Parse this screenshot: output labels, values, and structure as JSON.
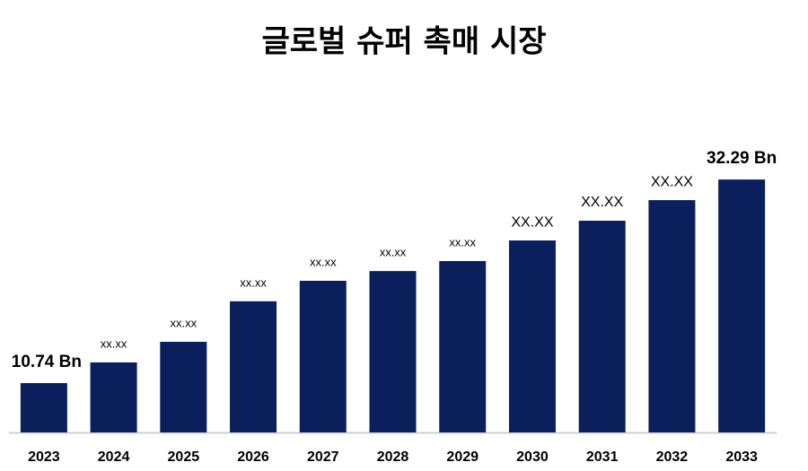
{
  "chart_data": {
    "type": "bar",
    "title": "글로벌 슈퍼 촉매 시장",
    "categories": [
      "2023",
      "2024",
      "2025",
      "2026",
      "2027",
      "2028",
      "2029",
      "2030",
      "2031",
      "2032",
      "2033"
    ],
    "values": [
      10.74,
      12.93,
      15.11,
      19.4,
      21.57,
      22.6,
      23.66,
      25.84,
      27.93,
      30.11,
      32.29
    ],
    "value_labels": [
      "10.74 Bn",
      "xx.xx",
      "xx.xx",
      "xx.xx",
      "xx.xx",
      "xx.xx",
      "xx.xx",
      "XX.XX",
      "XX.XX",
      "XX.XX",
      "32.29 Bn"
    ],
    "color": "#0a1f5c",
    "ylim": [
      5.52,
      35.15
    ]
  }
}
